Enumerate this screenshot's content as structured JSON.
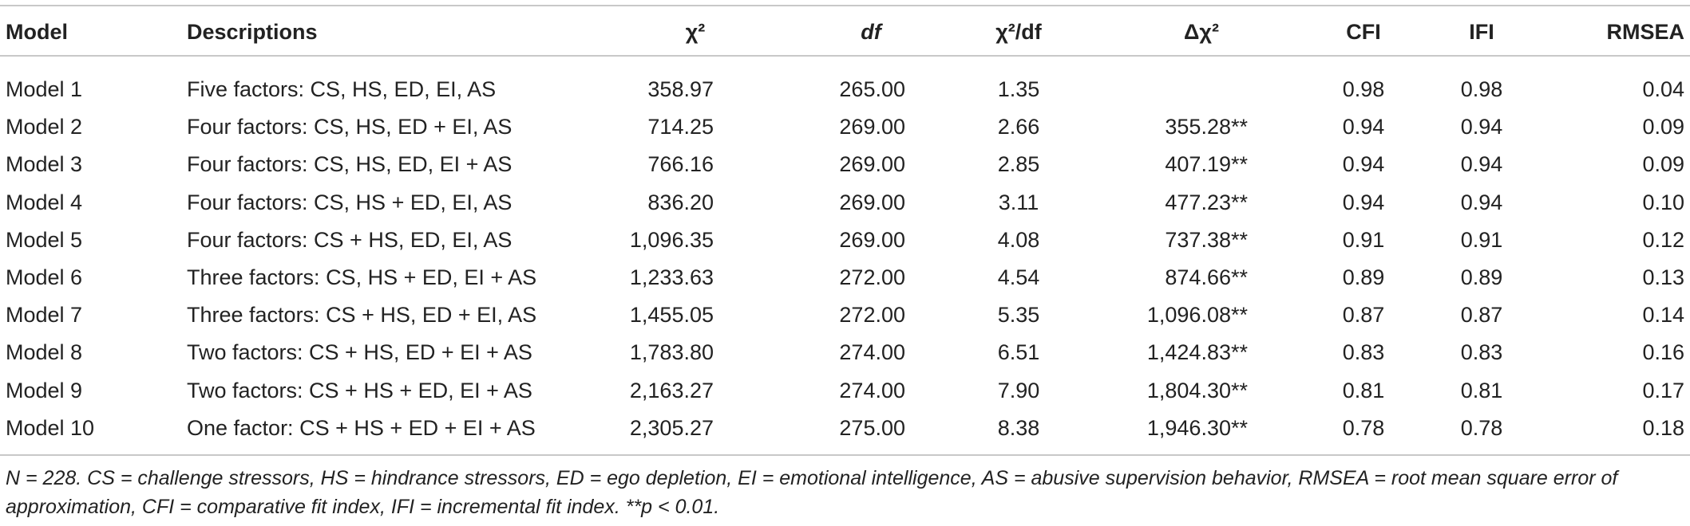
{
  "table": {
    "header": [
      "Model",
      "Descriptions",
      "χ²",
      "df",
      "χ²/df",
      "Δχ²",
      "CFI",
      "IFI",
      "RMSEA"
    ],
    "rows": [
      [
        "Model 1",
        "Five factors: CS, HS, ED, EI, AS",
        "358.97",
        "265.00",
        "1.35",
        null,
        "0.98",
        "0.98",
        "0.04"
      ],
      [
        "Model 2",
        "Four factors: CS, HS, ED + EI, AS",
        "714.25",
        "269.00",
        "2.66",
        "355.28**",
        "0.94",
        "0.94",
        "0.09"
      ],
      [
        "Model 3",
        "Four factors: CS, HS, ED, EI + AS",
        "766.16",
        "269.00",
        "2.85",
        "407.19**",
        "0.94",
        "0.94",
        "0.09"
      ],
      [
        "Model 4",
        "Four factors: CS, HS + ED, EI, AS",
        "836.20",
        "269.00",
        "3.11",
        "477.23**",
        "0.94",
        "0.94",
        "0.10"
      ],
      [
        "Model 5",
        "Four factors: CS + HS, ED, EI, AS",
        "1,096.35",
        "269.00",
        "4.08",
        "737.38**",
        "0.91",
        "0.91",
        "0.12"
      ],
      [
        "Model 6",
        "Three factors: CS, HS + ED, EI + AS",
        "1,233.63",
        "272.00",
        "4.54",
        "874.66**",
        "0.89",
        "0.89",
        "0.13"
      ],
      [
        "Model 7",
        "Three factors: CS + HS, ED + EI, AS",
        "1,455.05",
        "272.00",
        "5.35",
        "1,096.08**",
        "0.87",
        "0.87",
        "0.14"
      ],
      [
        "Model 8",
        "Two factors: CS + HS, ED + EI + AS",
        "1,783.80",
        "274.00",
        "6.51",
        "1,424.83**",
        "0.83",
        "0.83",
        "0.16"
      ],
      [
        "Model 9",
        "Two factors: CS + HS + ED, EI + AS",
        "2,163.27",
        "274.00",
        "7.90",
        "1,804.30**",
        "0.81",
        "0.81",
        "0.17"
      ],
      [
        "Model 10",
        "One factor: CS + HS + ED + EI + AS",
        "2,305.27",
        "275.00",
        "8.38",
        "1,946.30**",
        "0.78",
        "0.78",
        "0.18"
      ]
    ],
    "footnote": "N = 228. CS = challenge stressors, HS = hindrance stressors, ED = ego depletion, EI = emotional intelligence, AS = abusive supervision behavior, RMSEA = root mean square error of approximation, CFI = comparative fit index, IFI = incremental fit index. **p < 0.01."
  }
}
